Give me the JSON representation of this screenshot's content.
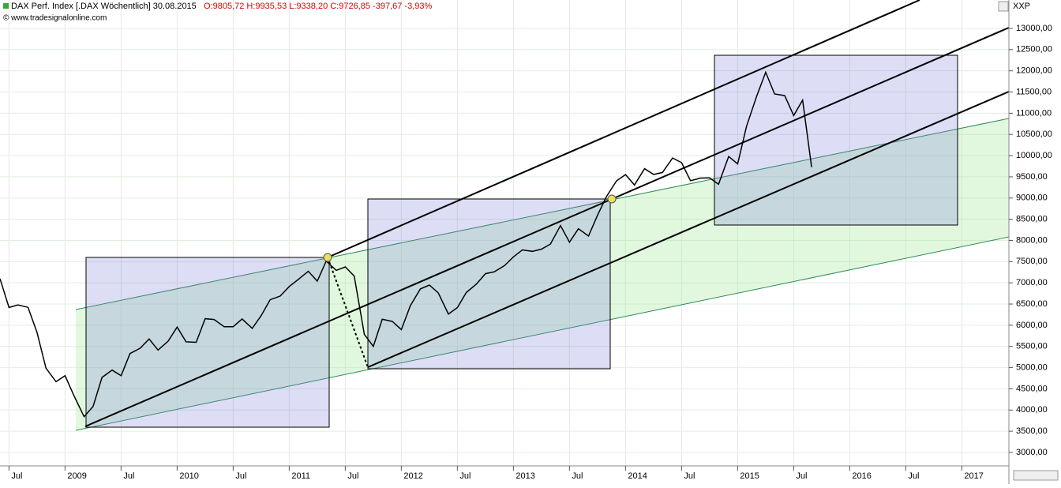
{
  "header": {
    "symbol_title": "DAX Perf. Index [.DAX  Wöchentlich] 30.08.2015",
    "ohlc": "O:9805,72 H:9935,53 L:9338,20 C:9726,85 -397,67 -3,93%",
    "source": "© www.tradesignalonline.com",
    "axis_code": "XXP"
  },
  "chart_data": {
    "type": "line",
    "color": "#000000",
    "grid": true,
    "x": [
      2008.42,
      2008.5,
      2008.58,
      2008.67,
      2008.75,
      2008.83,
      2008.92,
      2009.0,
      2009.08,
      2009.17,
      2009.25,
      2009.33,
      2009.42,
      2009.5,
      2009.58,
      2009.67,
      2009.75,
      2009.83,
      2009.92,
      2010.0,
      2010.08,
      2010.17,
      2010.25,
      2010.33,
      2010.42,
      2010.5,
      2010.58,
      2010.67,
      2010.75,
      2010.83,
      2010.92,
      2011.0,
      2011.08,
      2011.17,
      2011.25,
      2011.33,
      2011.42,
      2011.5,
      2011.58,
      2011.67,
      2011.75,
      2011.83,
      2011.92,
      2012.0,
      2012.08,
      2012.17,
      2012.25,
      2012.33,
      2012.42,
      2012.5,
      2012.58,
      2012.67,
      2012.75,
      2012.83,
      2012.92,
      2013.0,
      2013.08,
      2013.17,
      2013.25,
      2013.33,
      2013.42,
      2013.5,
      2013.58,
      2013.67,
      2013.75,
      2013.83,
      2013.92,
      2014.0,
      2014.08,
      2014.17,
      2014.25,
      2014.33,
      2014.42,
      2014.5,
      2014.58,
      2014.67,
      2014.75,
      2014.83,
      2014.92,
      2015.0,
      2015.08,
      2015.17,
      2015.25,
      2015.33,
      2015.42,
      2015.5,
      2015.58,
      2015.66
    ],
    "values": [
      7097,
      6418,
      6479,
      6422,
      5831,
      4988,
      4669,
      4810,
      4338,
      3843,
      4085,
      4769,
      4941,
      4809,
      5332,
      5458,
      5675,
      5415,
      5625,
      5957,
      5608,
      5598,
      6154,
      6136,
      5965,
      5966,
      6148,
      5925,
      6229,
      6601,
      6688,
      6914,
      7077,
      7273,
      7041,
      7514,
      7294,
      7376,
      7159,
      5785,
      5502,
      6141,
      6089,
      5898,
      6458,
      6856,
      6947,
      6761,
      6264,
      6416,
      6773,
      6971,
      7216,
      7260,
      7406,
      7612,
      7776,
      7742,
      7795,
      7914,
      8349,
      7959,
      8276,
      8104,
      8594,
      9033,
      9406,
      9552,
      9306,
      9692,
      9556,
      9603,
      9943,
      9833,
      9407,
      9470,
      9474,
      9326,
      9980,
      9806,
      10694,
      11402,
      11966,
      11454,
      11414,
      10945,
      11309,
      9726.85
    ],
    "xlim": [
      2008.42,
      2017.42
    ],
    "xticks": [
      {
        "value": 2008.5,
        "label": "Jul"
      },
      2009,
      {
        "value": 2009.5,
        "label": "Jul"
      },
      2010,
      {
        "value": 2010.5,
        "label": "Jul"
      },
      2011,
      {
        "value": 2011.5,
        "label": "Jul"
      },
      2012,
      {
        "value": 2012.5,
        "label": "Jul"
      },
      2013,
      {
        "value": 2013.5,
        "label": "Jul"
      },
      2014,
      {
        "value": 2014.5,
        "label": "Jul"
      },
      2015,
      {
        "value": 2015.5,
        "label": "Jul"
      },
      2016,
      {
        "value": 2016.5,
        "label": "Jul"
      },
      2017
    ],
    "ylim": [
      2683,
      13670
    ],
    "yticks": [
      {
        "value": 3000,
        "label": "3000,00"
      },
      {
        "value": 3500,
        "label": "3500,00"
      },
      {
        "value": 4000,
        "label": "4000,00"
      },
      {
        "value": 4500,
        "label": "4500,00"
      },
      {
        "value": 5000,
        "label": "5000,00"
      },
      {
        "value": 5500,
        "label": "5500,00"
      },
      {
        "value": 6000,
        "label": "6000,00"
      },
      {
        "value": 6500,
        "label": "6500,00"
      },
      {
        "value": 7000,
        "label": "7000,00"
      },
      {
        "value": 7500,
        "label": "7500,00"
      },
      {
        "value": 8000,
        "label": "8000,00"
      },
      {
        "value": 8500,
        "label": "8500,00"
      },
      {
        "value": 9000,
        "label": "9000,00"
      },
      {
        "value": 9500,
        "label": "9500,00"
      },
      {
        "value": 10000,
        "label": "10000,00"
      },
      {
        "value": 10500,
        "label": "10500,00"
      },
      {
        "value": 11000,
        "label": "11000,00"
      },
      {
        "value": 11500,
        "label": "11500,00"
      },
      {
        "value": 12000,
        "label": "12000,00"
      },
      {
        "value": 12500,
        "label": "12500,00"
      },
      {
        "value": 13000,
        "label": "13000,00"
      }
    ]
  }
}
